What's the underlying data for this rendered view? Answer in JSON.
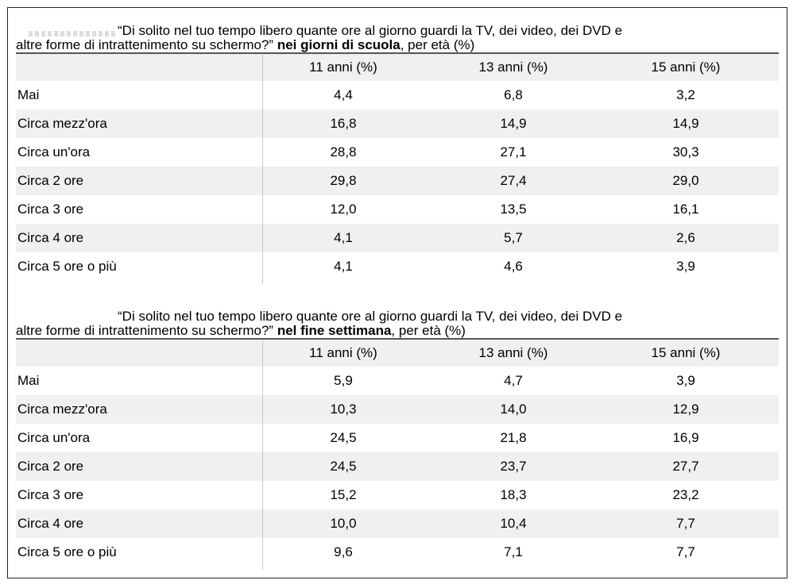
{
  "tables": [
    {
      "caption": {
        "line1": "“Di solito nel tuo tempo libero quante ore al giorno guardi la TV, dei video, dei DVD e",
        "line2_prefix": "altre forme di intrattenimento su schermo?” ",
        "line2_bold": "nei giorni di scuola",
        "line2_suffix": ", per età (%)"
      },
      "headers": [
        "",
        "11 anni (%)",
        "13 anni (%)",
        "15 anni (%)"
      ],
      "rows": [
        [
          "Mai",
          "4,4",
          "6,8",
          "3,2"
        ],
        [
          "Circa mezz'ora",
          "16,8",
          "14,9",
          "14,9"
        ],
        [
          "Circa un'ora",
          "28,8",
          "27,1",
          "30,3"
        ],
        [
          "Circa 2 ore",
          "29,8",
          "27,4",
          "29,0"
        ],
        [
          "Circa 3 ore",
          "12,0",
          "13,5",
          "16,1"
        ],
        [
          "Circa 4 ore",
          "4,1",
          "5,7",
          "2,6"
        ],
        [
          "Circa 5 ore o più",
          "4,1",
          "4,6",
          "3,9"
        ]
      ]
    },
    {
      "caption": {
        "line1": "“Di solito nel tuo tempo libero quante ore al giorno guardi la TV, dei video, dei DVD e",
        "line2_prefix": "altre forme di intrattenimento su schermo?” ",
        "line2_bold": "nel fine settimana",
        "line2_suffix": ", per età (%)"
      },
      "headers": [
        "",
        "11 anni (%)",
        "13 anni (%)",
        "15 anni (%)"
      ],
      "rows": [
        [
          "Mai",
          "5,9",
          "4,7",
          "3,9"
        ],
        [
          "Circa mezz'ora",
          "10,3",
          "14,0",
          "12,9"
        ],
        [
          "Circa un'ora",
          "24,5",
          "21,8",
          "16,9"
        ],
        [
          "Circa 2 ore",
          "24,5",
          "23,7",
          "27,7"
        ],
        [
          "Circa 3 ore",
          "15,2",
          "18,3",
          "23,2"
        ],
        [
          "Circa 4 ore",
          "10,0",
          "10,4",
          "7,7"
        ],
        [
          "Circa 5 ore o più",
          "9,6",
          "7,1",
          "7,7"
        ]
      ]
    }
  ]
}
